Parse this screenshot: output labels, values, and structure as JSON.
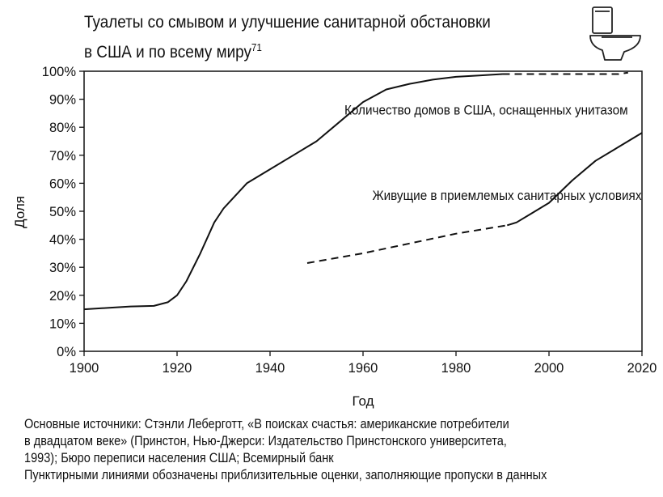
{
  "chart_data": {
    "type": "line",
    "title_lines": [
      "Туалеты со смывом и улучшение санитарной обстановки",
      "в США и по всему миру"
    ],
    "title_sup": "71",
    "xlabel": "Год",
    "ylabel": "Доля",
    "xlim": [
      1900,
      2020
    ],
    "ylim": [
      0,
      100
    ],
    "x_ticks": [
      "1900",
      "1920",
      "1940",
      "1960",
      "1980",
      "2000",
      "2020"
    ],
    "y_ticks": [
      "0%",
      "10%",
      "20%",
      "30%",
      "40%",
      "50%",
      "60%",
      "70%",
      "80%",
      "90%",
      "100%"
    ],
    "grid": false,
    "series": [
      {
        "name": "Количество домов в США, оснащенных унитазом",
        "segments": [
          {
            "style": "solid",
            "x": [
              1900,
              1905,
              1910,
              1915,
              1918,
              1920,
              1922,
              1925,
              1928,
              1930,
              1935,
              1940,
              1945,
              1950,
              1955,
              1960,
              1965,
              1970,
              1975,
              1980,
              1985,
              1990
            ],
            "y": [
              15,
              15.5,
              16,
              16.2,
              17.5,
              20,
              25,
              35,
              46,
              51,
              60,
              65,
              70,
              75,
              82,
              89,
              93.5,
              95.5,
              97,
              98,
              98.5,
              99
            ]
          },
          {
            "style": "dashed",
            "x": [
              1990,
              2000,
              2010,
              2015,
              2017
            ],
            "y": [
              99,
              99,
              99,
              99,
              99.5
            ]
          }
        ]
      },
      {
        "name": "Живущие в приемлемых санитарных условиях",
        "segments": [
          {
            "style": "dashed",
            "x": [
              1948,
              1960,
              1970,
              1980,
              1991
            ],
            "y": [
              31.5,
              35,
              38.5,
              42,
              45
            ]
          },
          {
            "style": "solid",
            "x": [
              1991,
              1993,
              1996,
              2000,
              2005,
              2010,
              2015,
              2020
            ],
            "y": [
              45,
              46,
              49,
              53,
              61,
              68,
              73,
              78
            ]
          }
        ]
      }
    ],
    "labels": [
      {
        "text": "Количество домов в США, оснащенных унитазом",
        "x": 1956,
        "y": 84.5
      },
      {
        "text": "Живущие в приемлемых санитарных условиях",
        "x": 1962,
        "y": 54
      }
    ]
  },
  "icon": "toilet-icon",
  "source_lines": [
    "Основные источники: Стэнли Леберготт, «В поисках счастья: американские потребители",
    "в двадцатом веке» (Принстон, Нью-Джерси: Издательство Принстонского университета,",
    "1993); Бюро переписи населения США; Всемирный банк",
    "Пунктирными линиями обозначены приблизительные оценки, заполняющие пропуски в данных"
  ]
}
